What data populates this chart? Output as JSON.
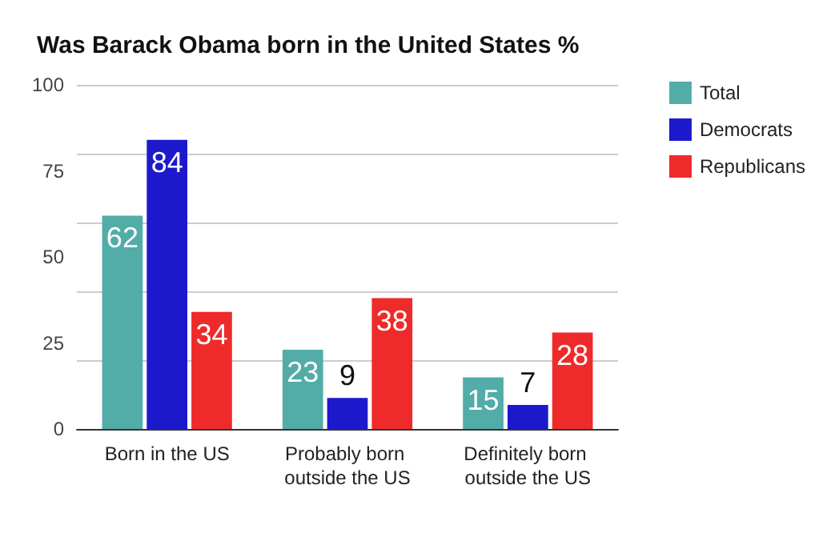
{
  "chart_data": {
    "type": "bar",
    "title": "Was Barack Obama born in the United States %",
    "categories": [
      "Born in the US",
      "Probably born outside the US",
      "Definitely born outside the US"
    ],
    "series": [
      {
        "name": "Total",
        "color": "#52aca8",
        "values": [
          62,
          23,
          15
        ]
      },
      {
        "name": "Democrats",
        "color": "#1c19cc",
        "values": [
          84,
          9,
          7
        ]
      },
      {
        "name": "Republicans",
        "color": "#ee2a2a",
        "values": [
          34,
          38,
          28
        ]
      }
    ],
    "ylim": [
      0,
      100
    ],
    "yticks": [
      0,
      25,
      50,
      75,
      100
    ],
    "grid": "y",
    "legend": "top right",
    "data_labels": true
  }
}
